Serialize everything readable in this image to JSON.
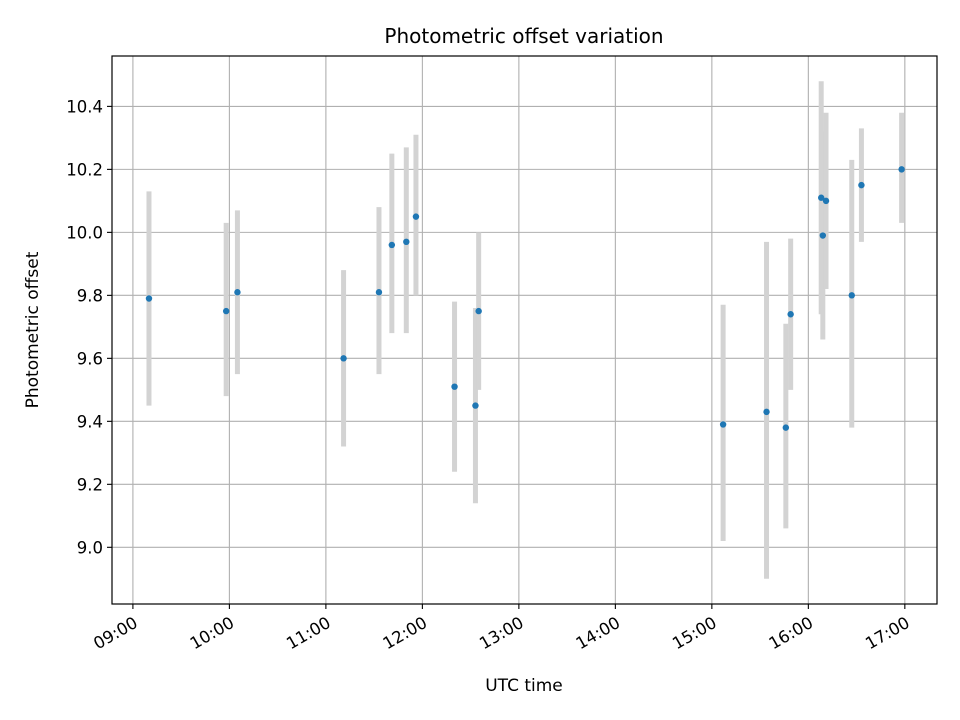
{
  "chart_data": {
    "type": "scatter",
    "title": "Photometric offset variation",
    "xlabel": "UTC time",
    "ylabel": "Photometric offset",
    "x_ticks": [
      "09:00",
      "10:00",
      "11:00",
      "12:00",
      "13:00",
      "14:00",
      "15:00",
      "16:00",
      "17:00"
    ],
    "y_ticks": [
      "9.0",
      "9.2",
      "9.4",
      "9.6",
      "9.8",
      "10.0",
      "10.2",
      "10.4"
    ],
    "xlim": [
      "08:47",
      "17:20"
    ],
    "ylim": [
      8.82,
      10.56
    ],
    "grid": true,
    "colors": {
      "point": "#1f77b4",
      "errorbar": "#d3d3d3",
      "grid": "#b0b0b0"
    },
    "points": [
      {
        "time": "09:10",
        "y": 9.79,
        "err_low": 9.45,
        "err_high": 10.13
      },
      {
        "time": "09:58",
        "y": 9.75,
        "err_low": 9.48,
        "err_high": 10.03
      },
      {
        "time": "10:05",
        "y": 9.81,
        "err_low": 9.55,
        "err_high": 10.07
      },
      {
        "time": "11:11",
        "y": 9.6,
        "err_low": 9.32,
        "err_high": 9.88
      },
      {
        "time": "11:33",
        "y": 9.81,
        "err_low": 9.55,
        "err_high": 10.08
      },
      {
        "time": "11:41",
        "y": 9.96,
        "err_low": 9.68,
        "err_high": 10.25
      },
      {
        "time": "11:50",
        "y": 9.97,
        "err_low": 9.68,
        "err_high": 10.27
      },
      {
        "time": "11:56",
        "y": 10.05,
        "err_low": 9.8,
        "err_high": 10.31
      },
      {
        "time": "12:20",
        "y": 9.51,
        "err_low": 9.24,
        "err_high": 9.78
      },
      {
        "time": "12:33",
        "y": 9.45,
        "err_low": 9.14,
        "err_high": 9.76
      },
      {
        "time": "12:35",
        "y": 9.75,
        "err_low": 9.5,
        "err_high": 10.0
      },
      {
        "time": "15:07",
        "y": 9.39,
        "err_low": 9.02,
        "err_high": 9.77
      },
      {
        "time": "15:34",
        "y": 9.43,
        "err_low": 8.9,
        "err_high": 9.97
      },
      {
        "time": "15:46",
        "y": 9.38,
        "err_low": 9.06,
        "err_high": 9.71
      },
      {
        "time": "15:49",
        "y": 9.74,
        "err_low": 9.5,
        "err_high": 9.98
      },
      {
        "time": "16:08",
        "y": 10.11,
        "err_low": 9.74,
        "err_high": 10.48
      },
      {
        "time": "16:09",
        "y": 9.99,
        "err_low": 9.66,
        "err_high": 10.32
      },
      {
        "time": "16:11",
        "y": 10.1,
        "err_low": 9.82,
        "err_high": 10.38
      },
      {
        "time": "16:27",
        "y": 9.8,
        "err_low": 9.38,
        "err_high": 10.23
      },
      {
        "time": "16:33",
        "y": 10.15,
        "err_low": 9.97,
        "err_high": 10.33
      },
      {
        "time": "16:58",
        "y": 10.2,
        "err_low": 10.03,
        "err_high": 10.38
      }
    ]
  }
}
